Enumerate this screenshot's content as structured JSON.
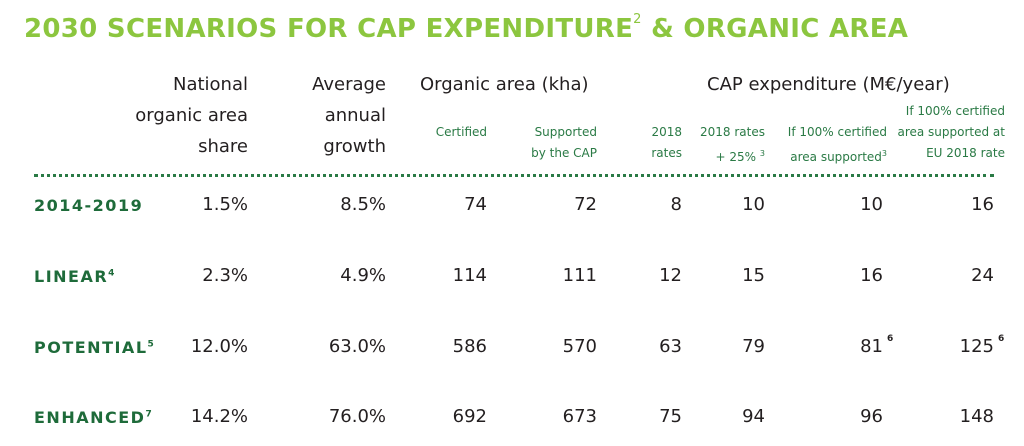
{
  "title": {
    "text": "2030 SCENARIOS FOR CAP EXPENDITURE",
    "sup": "2",
    "rest": " & ORGANIC AREA"
  },
  "headers": {
    "share": [
      "National",
      "organic area",
      "share"
    ],
    "growth": [
      "Average",
      "annual",
      "growth"
    ],
    "organic_area": "Organic area (kha)",
    "certified": "Certified",
    "supported": [
      "Supported",
      "by the CAP"
    ],
    "cap": "CAP expenditure (M€/year)",
    "rates2018": [
      "2018",
      "rates"
    ],
    "rates25": [
      "2018 rates",
      "+ 25%",
      "3"
    ],
    "if100": [
      "If 100% certified",
      "area supported",
      "3"
    ],
    "if100eu": [
      "If 100% certified",
      "area supported at",
      "EU 2018 rate"
    ]
  },
  "rows": [
    {
      "label": "2014-2019",
      "sup": "",
      "share": "1.5%",
      "growth": "8.5%",
      "certified": "74",
      "supported": "72",
      "r2018": "8",
      "r25": "10",
      "if100": "10",
      "if100_sup": "",
      "eu": "16",
      "eu_sup": ""
    },
    {
      "label": "LINEAR",
      "sup": "4",
      "share": "2.3%",
      "growth": "4.9%",
      "certified": "114",
      "supported": "111",
      "r2018": "12",
      "r25": "15",
      "if100": "16",
      "if100_sup": "",
      "eu": "24",
      "eu_sup": ""
    },
    {
      "label": "POTENTIAL",
      "sup": "5",
      "share": "12.0%",
      "growth": "63.0%",
      "certified": "586",
      "supported": "570",
      "r2018": "63",
      "r25": "79",
      "if100": "81",
      "if100_sup": "6",
      "eu": "125",
      "eu_sup": "6"
    },
    {
      "label": "ENHANCED",
      "sup": "7",
      "share": "14.2%",
      "growth": "76.0%",
      "certified": "692",
      "supported": "673",
      "r2018": "75",
      "r25": "94",
      "if100": "96",
      "if100_sup": "",
      "eu": "148",
      "eu_sup": ""
    }
  ],
  "colors": {
    "title": "#8cc63f",
    "row_label": "#1e6b3a",
    "subheader": "#2a7a45"
  }
}
